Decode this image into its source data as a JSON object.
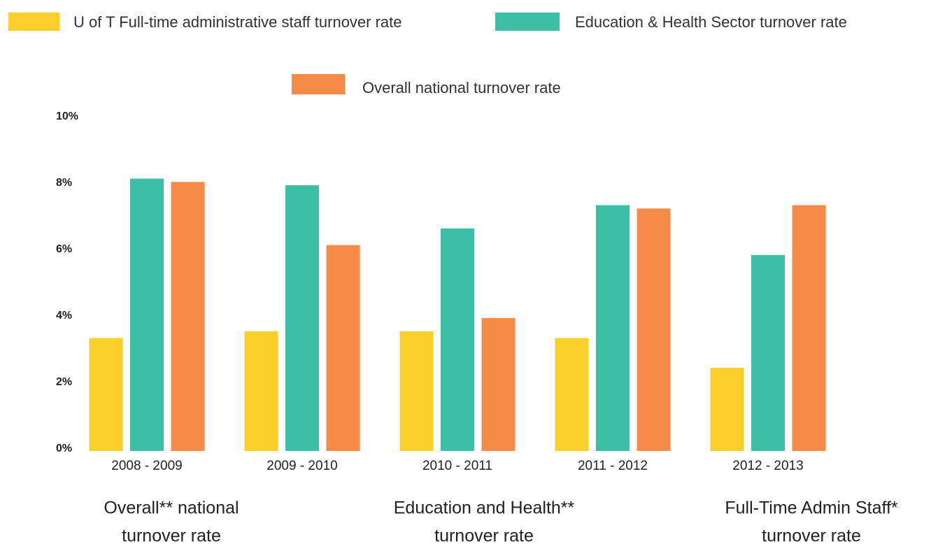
{
  "chart_data": {
    "type": "bar",
    "categories": [
      "2008 - 2009",
      "2009 - 2010",
      "2010 - 2011",
      "2011 - 2012",
      "2012 - 2013"
    ],
    "series": [
      {
        "name": "U of T Full-time administrative staff turnover rate",
        "color": "#f9d02a",
        "values": [
          3.4,
          3.6,
          3.6,
          3.4,
          2.5
        ]
      },
      {
        "name": "Education & Health Sector turnover rate",
        "color": "#3dbfa5",
        "values": [
          8.2,
          8.0,
          6.7,
          7.4,
          5.9
        ]
      },
      {
        "name": "Overall national turnover rate",
        "color": "#f68b47",
        "values": [
          8.1,
          6.2,
          4.0,
          7.3,
          7.4
        ]
      }
    ],
    "ylim": [
      0,
      10
    ],
    "yticks": [
      {
        "value": 0,
        "label": "0%"
      },
      {
        "value": 2,
        "label": "2%"
      },
      {
        "value": 4,
        "label": "4%"
      },
      {
        "value": 6,
        "label": "6%"
      },
      {
        "value": 8,
        "label": "8%"
      },
      {
        "value": 10,
        "label": "10%"
      }
    ],
    "grid": false,
    "annotations": [
      [
        "Overall** national",
        "turnover rate"
      ],
      [
        "Education and Health**",
        "turnover rate"
      ],
      [
        "Full-Time Admin Staff*",
        "turnover rate"
      ]
    ]
  }
}
